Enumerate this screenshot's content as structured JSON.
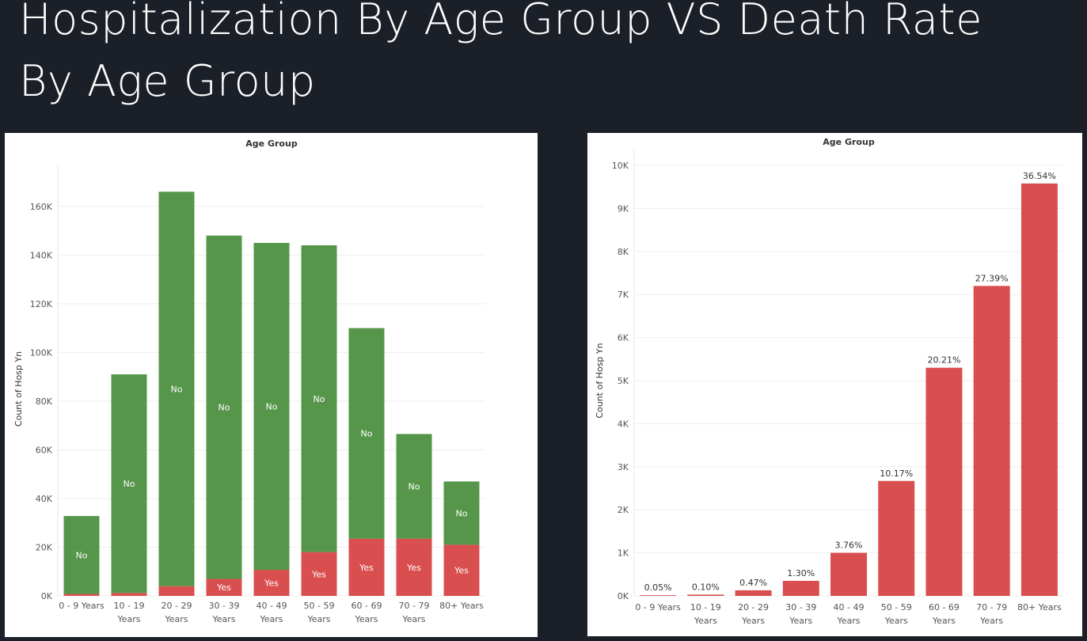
{
  "page": {
    "title_line1": "Hospitalization By Age Group VS Death Rate",
    "title_line2": "By Age Group"
  },
  "colors": {
    "background": "#1b1f27",
    "green": "#55964a",
    "red": "#d94f50",
    "grid": "#eeeeee",
    "axis_text": "#555555"
  },
  "chart_data": [
    {
      "type": "bar",
      "stacked": true,
      "title": "Age Group",
      "ylabel": "Count of Hosp Yn",
      "ylim": [
        0,
        170000
      ],
      "yticks": [
        0,
        20000,
        40000,
        60000,
        80000,
        100000,
        120000,
        140000,
        160000
      ],
      "ytick_labels": [
        "0K",
        "20K",
        "40K",
        "60K",
        "80K",
        "100K",
        "120K",
        "140K",
        "160K"
      ],
      "grid": true,
      "categories": [
        [
          "0 - 9 Years"
        ],
        [
          "10 - 19",
          "Years"
        ],
        [
          "20 - 29",
          "Years"
        ],
        [
          "30 - 39",
          "Years"
        ],
        [
          "40 - 49",
          "Years"
        ],
        [
          "50 - 59",
          "Years"
        ],
        [
          "60 - 69",
          "Years"
        ],
        [
          "70 - 79",
          "Years"
        ],
        [
          "80+ Years"
        ]
      ],
      "series": [
        {
          "name": "Yes",
          "color": "#d94f50",
          "values": [
            800,
            1200,
            4000,
            7000,
            10700,
            18000,
            23500,
            23500,
            21000
          ]
        },
        {
          "name": "No",
          "color": "#55964a",
          "values": [
            32000,
            89800,
            162000,
            141000,
            134300,
            126000,
            86500,
            43000,
            26000
          ]
        }
      ],
      "segment_labels": [
        [
          "",
          "",
          "",
          "Yes",
          "Yes",
          "Yes",
          "Yes",
          "Yes",
          "Yes"
        ],
        [
          "No",
          "No",
          "No",
          "No",
          "No",
          "No",
          "No",
          "No",
          "No"
        ]
      ]
    },
    {
      "type": "bar",
      "title": "Age Group",
      "ylabel": "Count of Hosp Yn",
      "ylim": [
        0,
        10000
      ],
      "yticks": [
        0,
        1000,
        2000,
        3000,
        4000,
        5000,
        6000,
        7000,
        8000,
        9000,
        10000
      ],
      "ytick_labels": [
        "0K",
        "1K",
        "2K",
        "3K",
        "4K",
        "5K",
        "6K",
        "7K",
        "8K",
        "9K",
        "10K"
      ],
      "grid": true,
      "categories": [
        [
          "0 - 9 Years"
        ],
        [
          "10 - 19",
          "Years"
        ],
        [
          "20 - 29",
          "Years"
        ],
        [
          "30 - 39",
          "Years"
        ],
        [
          "40 - 49",
          "Years"
        ],
        [
          "50 - 59",
          "Years"
        ],
        [
          "60 - 69",
          "Years"
        ],
        [
          "70 - 79",
          "Years"
        ],
        [
          "80+ Years"
        ]
      ],
      "values": [
        15,
        30,
        130,
        350,
        1000,
        2670,
        5300,
        7200,
        9580
      ],
      "data_labels": [
        "0.05%",
        "0.10%",
        "0.47%",
        "1.30%",
        "3.76%",
        "10.17%",
        "20.21%",
        "27.39%",
        "36.54%"
      ],
      "color": "#d94f50"
    }
  ]
}
